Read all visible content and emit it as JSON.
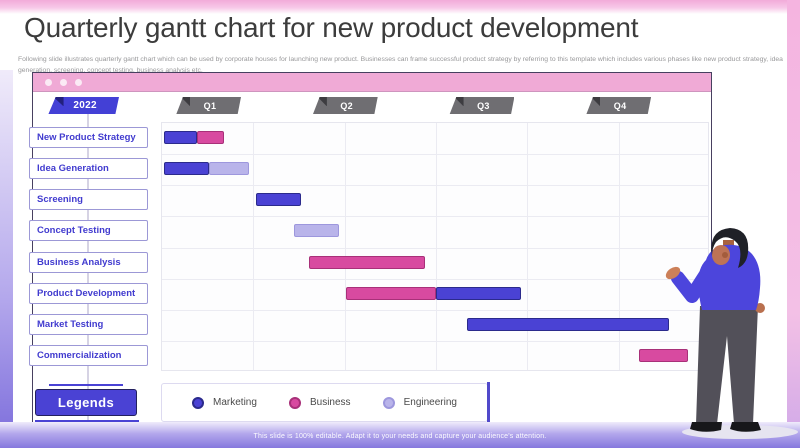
{
  "slide": {
    "title": "Quarterly gantt chart for new product development",
    "subtitle": "Following slide illustrates quarterly gantt chart which can be used by corporate houses for launching new product. Businesses can frame successful product strategy by referring to this template  which includes various phases like new product strategy, idea generation, screening, concept testing, business analysis etc.",
    "footer": "This slide is 100% editable. Adapt it to your needs and capture your audience's attention."
  },
  "legend_panel": {
    "button_label": "Legends"
  },
  "colors": {
    "marketing": "#4a42d4",
    "business": "#d84aa0",
    "engineering": "#b9b4ea",
    "year_flag": "#4340d6",
    "quarter_flag": "#6f6e72",
    "window_bar": "#f0aad6"
  },
  "chart_data": {
    "type": "gantt",
    "title": "Quarterly gantt chart for new product development",
    "year": "2022",
    "quarters": [
      "Q1",
      "Q2",
      "Q3",
      "Q4"
    ],
    "x_axis": {
      "unit": "quarters",
      "range": [
        0,
        4
      ],
      "grid_columns": 6
    },
    "legend": [
      {
        "name": "Marketing",
        "color": "#4a42d4",
        "edge": "#2b2a8c"
      },
      {
        "name": "Business",
        "color": "#d84aa0",
        "edge": "#a83079"
      },
      {
        "name": "Engineering",
        "color": "#b9b4ea",
        "edge": "#9d97dd"
      }
    ],
    "tasks": [
      {
        "label": "New Product Strategy",
        "segments": [
          {
            "team": "Marketing",
            "start": 0.02,
            "end": 0.26
          },
          {
            "team": "Business",
            "start": 0.26,
            "end": 0.46
          }
        ]
      },
      {
        "label": "Idea Generation",
        "segments": [
          {
            "team": "Marketing",
            "start": 0.02,
            "end": 0.35
          },
          {
            "team": "Engineering",
            "start": 0.35,
            "end": 0.64
          }
        ]
      },
      {
        "label": "Screening",
        "segments": [
          {
            "team": "Marketing",
            "start": 0.69,
            "end": 1.02
          }
        ]
      },
      {
        "label": "Concept Testing",
        "segments": [
          {
            "team": "Engineering",
            "start": 0.97,
            "end": 1.3
          }
        ]
      },
      {
        "label": "Business Analysis",
        "segments": [
          {
            "team": "Business",
            "start": 1.08,
            "end": 1.93
          }
        ]
      },
      {
        "label": "Product Development",
        "segments": [
          {
            "team": "Business",
            "start": 1.35,
            "end": 2.01
          },
          {
            "team": "Marketing",
            "start": 2.01,
            "end": 2.63
          }
        ]
      },
      {
        "label": "Market Testing",
        "segments": [
          {
            "team": "Marketing",
            "start": 2.23,
            "end": 3.71
          }
        ]
      },
      {
        "label": "Commercialization",
        "segments": [
          {
            "team": "Business",
            "start": 3.49,
            "end": 3.85
          }
        ]
      }
    ]
  }
}
